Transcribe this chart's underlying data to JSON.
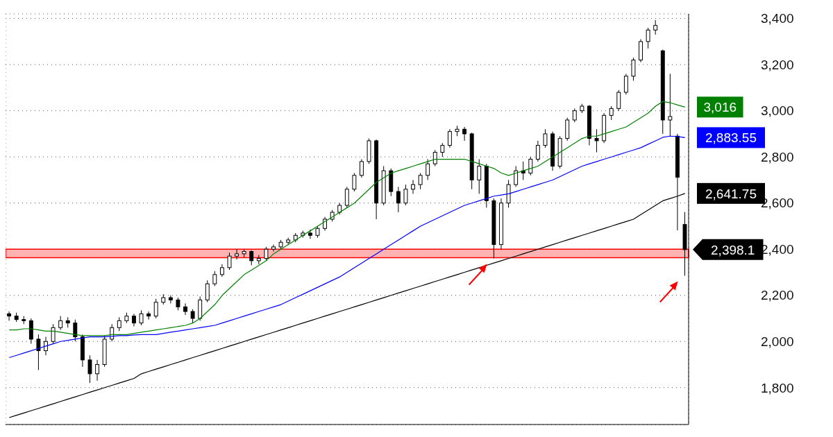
{
  "chart_data": {
    "type": "candlestick",
    "categories": [
      null,
      null,
      null,
      null,
      null,
      null,
      null,
      null,
      null,
      null,
      null,
      null,
      null,
      null,
      null,
      null,
      null,
      null,
      null,
      null,
      null,
      null,
      null,
      null,
      null,
      null,
      null,
      null,
      null,
      null,
      null,
      null,
      null,
      null,
      null,
      null,
      null,
      null,
      null,
      null,
      null,
      null,
      null,
      null,
      null,
      null,
      null,
      null,
      null,
      null,
      null,
      null,
      null,
      null,
      null,
      null,
      null,
      null,
      null,
      null,
      null,
      null,
      null,
      null,
      null,
      null,
      null,
      null,
      null,
      null,
      null,
      null,
      null,
      null,
      null,
      null,
      null,
      null,
      null,
      null,
      null,
      null,
      null,
      null,
      null,
      null,
      null,
      null,
      null,
      null,
      null,
      null,
      null
    ],
    "ohlc": [
      [
        2120,
        2130,
        2090,
        2110
      ],
      [
        2110,
        2125,
        2085,
        2095
      ],
      [
        2095,
        2110,
        2075,
        2090
      ],
      [
        2090,
        2100,
        1990,
        2010
      ],
      [
        2010,
        2030,
        1876,
        1960
      ],
      [
        1960,
        2020,
        1940,
        2000
      ],
      [
        2000,
        2075,
        1990,
        2060
      ],
      [
        2060,
        2110,
        2050,
        2090
      ],
      [
        2090,
        2105,
        2060,
        2080
      ],
      [
        2080,
        2095,
        2000,
        2020
      ],
      [
        2020,
        2030,
        1890,
        1920
      ],
      [
        1920,
        1940,
        1820,
        1860
      ],
      [
        1860,
        1920,
        1830,
        1900
      ],
      [
        1900,
        2025,
        1890,
        2010
      ],
      [
        2010,
        2075,
        2000,
        2060
      ],
      [
        2060,
        2105,
        2045,
        2090
      ],
      [
        2090,
        2125,
        2080,
        2110
      ],
      [
        2110,
        2120,
        2065,
        2080
      ],
      [
        2080,
        2135,
        2070,
        2120
      ],
      [
        2120,
        2130,
        2095,
        2110
      ],
      [
        2110,
        2185,
        2100,
        2170
      ],
      [
        2170,
        2205,
        2160,
        2190
      ],
      [
        2190,
        2200,
        2165,
        2180
      ],
      [
        2180,
        2190,
        2135,
        2150
      ],
      [
        2150,
        2165,
        2115,
        2130
      ],
      [
        2130,
        2140,
        2080,
        2100
      ],
      [
        2100,
        2195,
        2090,
        2180
      ],
      [
        2180,
        2265,
        2170,
        2250
      ],
      [
        2250,
        2305,
        2240,
        2290
      ],
      [
        2290,
        2335,
        2280,
        2320
      ],
      [
        2320,
        2385,
        2310,
        2370
      ],
      [
        2370,
        2400,
        2355,
        2380
      ],
      [
        2380,
        2400,
        2365,
        2390
      ],
      [
        2390,
        2395,
        2330,
        2350
      ],
      [
        2350,
        2375,
        2335,
        2360
      ],
      [
        2360,
        2410,
        2350,
        2400
      ],
      [
        2400,
        2420,
        2390,
        2410
      ],
      [
        2410,
        2440,
        2400,
        2430
      ],
      [
        2430,
        2450,
        2420,
        2440
      ],
      [
        2440,
        2470,
        2430,
        2460
      ],
      [
        2460,
        2480,
        2450,
        2470
      ],
      [
        2470,
        2485,
        2445,
        2460
      ],
      [
        2460,
        2500,
        2450,
        2490
      ],
      [
        2490,
        2540,
        2480,
        2530
      ],
      [
        2530,
        2570,
        2520,
        2560
      ],
      [
        2560,
        2600,
        2550,
        2590
      ],
      [
        2590,
        2670,
        2580,
        2660
      ],
      [
        2660,
        2730,
        2650,
        2720
      ],
      [
        2720,
        2790,
        2710,
        2780
      ],
      [
        2780,
        2880,
        2770,
        2870
      ],
      [
        2870,
        2875,
        2530,
        2600
      ],
      [
        2600,
        2760,
        2590,
        2740
      ],
      [
        2740,
        2750,
        2630,
        2650
      ],
      [
        2650,
        2670,
        2560,
        2600
      ],
      [
        2600,
        2680,
        2590,
        2660
      ],
      [
        2660,
        2700,
        2640,
        2680
      ],
      [
        2680,
        2730,
        2660,
        2720
      ],
      [
        2720,
        2790,
        2700,
        2770
      ],
      [
        2770,
        2830,
        2760,
        2820
      ],
      [
        2820,
        2860,
        2800,
        2850
      ],
      [
        2850,
        2920,
        2840,
        2910
      ],
      [
        2910,
        2935,
        2890,
        2920
      ],
      [
        2920,
        2930,
        2870,
        2900
      ],
      [
        2900,
        2905,
        2660,
        2700
      ],
      [
        2700,
        2790,
        2640,
        2760
      ],
      [
        2760,
        2770,
        2580,
        2610
      ],
      [
        2610,
        2620,
        2360,
        2420
      ],
      [
        2420,
        2620,
        2400,
        2600
      ],
      [
        2600,
        2700,
        2580,
        2680
      ],
      [
        2680,
        2760,
        2670,
        2740
      ],
      [
        2740,
        2780,
        2700,
        2730
      ],
      [
        2730,
        2800,
        2720,
        2790
      ],
      [
        2790,
        2870,
        2780,
        2850
      ],
      [
        2850,
        2920,
        2840,
        2900
      ],
      [
        2900,
        2910,
        2740,
        2760
      ],
      [
        2760,
        2890,
        2750,
        2880
      ],
      [
        2880,
        2970,
        2870,
        2960
      ],
      [
        2960,
        3010,
        2950,
        3000
      ],
      [
        3000,
        3030,
        2990,
        3020
      ],
      [
        3020,
        3025,
        2850,
        2880
      ],
      [
        2880,
        2920,
        2820,
        2870
      ],
      [
        2870,
        2990,
        2860,
        2980
      ],
      [
        2980,
        3020,
        2960,
        3010
      ],
      [
        3010,
        3090,
        3000,
        3080
      ],
      [
        3080,
        3160,
        3070,
        3150
      ],
      [
        3150,
        3230,
        3130,
        3220
      ],
      [
        3220,
        3310,
        3210,
        3300
      ],
      [
        3300,
        3360,
        3270,
        3350
      ],
      [
        3350,
        3393,
        3330,
        3370
      ],
      [
        3260,
        3265,
        2900,
        2960
      ],
      [
        2960,
        3160,
        2890,
        2975
      ],
      [
        2890,
        2900,
        2482,
        2712
      ],
      [
        2507,
        2561,
        2285,
        2398.1
      ]
    ],
    "value_labels": [
      null,
      null,
      null,
      null,
      null,
      null,
      null,
      null,
      null,
      null,
      null,
      null,
      null,
      null,
      null,
      null,
      null,
      null,
      null,
      null,
      null,
      null,
      null,
      null,
      null,
      null,
      null,
      null,
      null,
      null,
      null,
      null,
      null,
      null,
      null,
      null,
      null,
      null,
      null,
      null,
      null,
      null,
      null,
      null,
      null,
      null,
      null,
      null,
      null,
      null,
      null,
      null,
      null,
      null,
      null,
      null,
      null,
      null,
      null,
      null,
      null,
      null,
      null,
      null,
      null,
      null,
      null,
      null,
      null,
      null,
      null,
      null,
      null,
      null,
      null,
      null,
      null,
      null,
      null,
      null,
      null,
      null,
      null,
      null,
      null,
      null,
      null,
      null,
      null,
      null,
      null,
      null,
      "2,398.1"
    ],
    "series": [
      {
        "type": "line",
        "color": "#008000",
        "values": [
          2050,
          2050,
          2055,
          2055,
          2050,
          2045,
          2045,
          2040,
          2035,
          2030,
          2025,
          2025,
          2025,
          2025,
          2030,
          2030,
          2030,
          2035,
          2040,
          2045,
          2050,
          2055,
          2060,
          2065,
          2070,
          2080,
          2100,
          2130,
          2160,
          2200,
          2230,
          2260,
          2290,
          2310,
          2330,
          2350,
          2380,
          2400,
          2420,
          2440,
          2460,
          2480,
          2500,
          2520,
          2540,
          2560,
          2580,
          2600,
          2630,
          2660,
          2690,
          2710,
          2730,
          2740,
          2750,
          2760,
          2770,
          2780,
          2790,
          2790,
          2790,
          2790,
          2790,
          2780,
          2770,
          2760,
          2750,
          2730,
          2720,
          2730,
          2740,
          2750,
          2760,
          2780,
          2800,
          2820,
          2840,
          2860,
          2880,
          2890,
          2890,
          2900,
          2910,
          2920,
          2930,
          2950,
          2970,
          2990,
          3020,
          3040,
          3035,
          3025,
          3016
        ],
        "value_labels": [
          null,
          null,
          null,
          null,
          null,
          null,
          null,
          null,
          null,
          null,
          null,
          null,
          null,
          null,
          null,
          null,
          null,
          null,
          null,
          null,
          null,
          null,
          null,
          null,
          null,
          null,
          null,
          null,
          null,
          null,
          null,
          null,
          null,
          null,
          null,
          null,
          null,
          null,
          null,
          null,
          null,
          null,
          null,
          null,
          null,
          null,
          null,
          null,
          null,
          null,
          null,
          null,
          null,
          null,
          null,
          null,
          null,
          null,
          null,
          null,
          null,
          null,
          null,
          null,
          null,
          null,
          null,
          null,
          null,
          null,
          null,
          null,
          null,
          null,
          null,
          null,
          null,
          null,
          null,
          null,
          null,
          null,
          null,
          null,
          null,
          null,
          null,
          null,
          null,
          null,
          null,
          null,
          "3,016"
        ]
      },
      {
        "type": "line",
        "color": "#0000ff",
        "values": [
          1930,
          1940,
          1950,
          1960,
          1970,
          1980,
          1990,
          2000,
          2005,
          2010,
          2015,
          2020,
          2020,
          2020,
          2022,
          2025,
          2025,
          2028,
          2030,
          2030,
          2030,
          2035,
          2040,
          2045,
          2050,
          2055,
          2060,
          2065,
          2070,
          2080,
          2090,
          2100,
          2110,
          2120,
          2130,
          2140,
          2150,
          2160,
          2175,
          2190,
          2205,
          2220,
          2235,
          2250,
          2265,
          2280,
          2300,
          2320,
          2340,
          2360,
          2380,
          2400,
          2420,
          2440,
          2460,
          2480,
          2500,
          2515,
          2530,
          2545,
          2560,
          2575,
          2590,
          2600,
          2610,
          2620,
          2630,
          2635,
          2640,
          2650,
          2660,
          2670,
          2680,
          2690,
          2700,
          2715,
          2730,
          2745,
          2760,
          2770,
          2780,
          2790,
          2800,
          2810,
          2820,
          2830,
          2840,
          2855,
          2870,
          2885,
          2890,
          2888,
          2883.55
        ],
        "value_labels": [
          null,
          null,
          null,
          null,
          null,
          null,
          null,
          null,
          null,
          null,
          null,
          null,
          null,
          null,
          null,
          null,
          null,
          null,
          null,
          null,
          null,
          null,
          null,
          null,
          null,
          null,
          null,
          null,
          null,
          null,
          null,
          null,
          null,
          null,
          null,
          null,
          null,
          null,
          null,
          null,
          null,
          null,
          null,
          null,
          null,
          null,
          null,
          null,
          null,
          null,
          null,
          null,
          null,
          null,
          null,
          null,
          null,
          null,
          null,
          null,
          null,
          null,
          null,
          null,
          null,
          null,
          null,
          null,
          null,
          null,
          null,
          null,
          null,
          null,
          null,
          null,
          null,
          null,
          null,
          null,
          null,
          null,
          null,
          null,
          null,
          null,
          null,
          null,
          null,
          null,
          null,
          null,
          "2,883.55"
        ]
      },
      {
        "type": "line",
        "color": "#000000",
        "values": [
          1670,
          1680,
          1690,
          1700,
          1710,
          1720,
          1730,
          1740,
          1750,
          1760,
          1770,
          1780,
          1790,
          1800,
          1810,
          1820,
          1830,
          1840,
          1860,
          1870,
          1880,
          1890,
          1900,
          1910,
          1920,
          1930,
          1940,
          1950,
          1960,
          1970,
          1980,
          1990,
          2000,
          2010,
          2020,
          2030,
          2040,
          2050,
          2060,
          2070,
          2080,
          2090,
          2100,
          2110,
          2120,
          2130,
          2140,
          2150,
          2160,
          2170,
          2180,
          2190,
          2200,
          2210,
          2220,
          2230,
          2240,
          2250,
          2260,
          2270,
          2280,
          2290,
          2300,
          2310,
          2320,
          2330,
          2340,
          2350,
          2360,
          2370,
          2380,
          2390,
          2400,
          2410,
          2420,
          2430,
          2440,
          2450,
          2460,
          2470,
          2480,
          2490,
          2500,
          2510,
          2520,
          2530,
          2550,
          2570,
          2590,
          2610,
          2620,
          2630,
          2641.75
        ],
        "value_labels": [
          null,
          null,
          null,
          null,
          null,
          null,
          null,
          null,
          null,
          null,
          null,
          null,
          null,
          null,
          null,
          null,
          null,
          null,
          null,
          null,
          null,
          null,
          null,
          null,
          null,
          null,
          null,
          null,
          null,
          null,
          null,
          null,
          null,
          null,
          null,
          null,
          null,
          null,
          null,
          null,
          null,
          null,
          null,
          null,
          null,
          null,
          null,
          null,
          null,
          null,
          null,
          null,
          null,
          null,
          null,
          null,
          null,
          null,
          null,
          null,
          null,
          null,
          null,
          null,
          null,
          null,
          null,
          null,
          null,
          null,
          null,
          null,
          null,
          null,
          null,
          null,
          null,
          null,
          null,
          null,
          null,
          null,
          null,
          null,
          null,
          null,
          null,
          null,
          null,
          null,
          null,
          null,
          "2,641.75"
        ]
      }
    ],
    "ylim": [
      1640,
      3420
    ],
    "yticks": [
      {
        "value": 1800,
        "label": "1,800"
      },
      {
        "value": 2000,
        "label": "2,000"
      },
      {
        "value": 2200,
        "label": "2,200"
      },
      {
        "value": 2400,
        "label": "2,400"
      },
      {
        "value": 2600,
        "label": "2,600"
      },
      {
        "value": 2800,
        "label": "2,800"
      },
      {
        "value": 3000,
        "label": "3,000"
      },
      {
        "value": 3200,
        "label": "3,200"
      },
      {
        "value": 3400,
        "label": "3,400"
      }
    ],
    "bands": [
      {
        "axis": "y",
        "from": 2363,
        "to": 2400,
        "color": "#ff0000"
      }
    ],
    "grid": true
  }
}
